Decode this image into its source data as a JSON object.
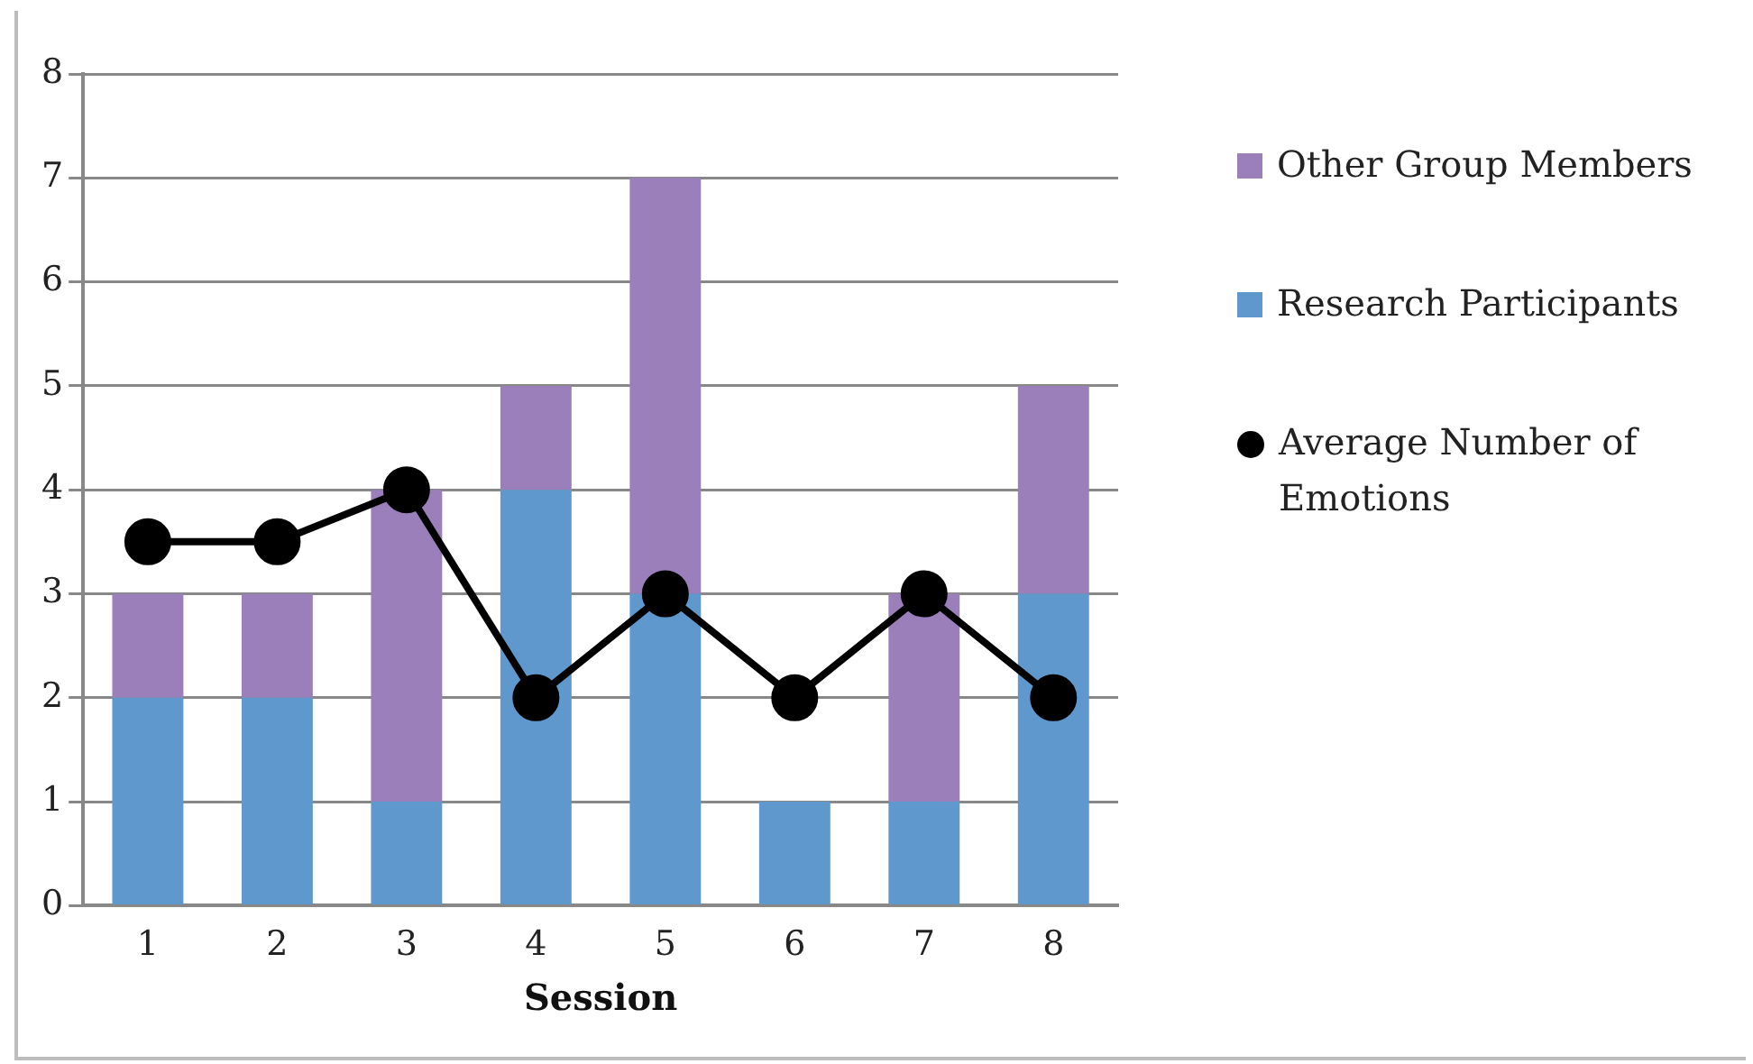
{
  "chart_data": {
    "type": "bar",
    "stacked": true,
    "xlabel": "Session",
    "categories": [
      "1",
      "2",
      "3",
      "4",
      "5",
      "6",
      "7",
      "8"
    ],
    "series": [
      {
        "name": "Research Participants",
        "color": "#5f98cc",
        "values": [
          2,
          2,
          1,
          4,
          3,
          1,
          1,
          3
        ]
      },
      {
        "name": "Other Group Members",
        "color": "#9a7fba",
        "values": [
          1,
          1,
          3,
          1,
          4,
          0,
          2,
          2
        ]
      },
      {
        "name": "Average Number of Emotions",
        "type": "line",
        "color": "#000000",
        "marker": "circle",
        "values": [
          3.5,
          3.5,
          4,
          2,
          3,
          2,
          3,
          2
        ]
      }
    ],
    "ylim": [
      0,
      8
    ],
    "yticks": [
      0,
      1,
      2,
      3,
      4,
      5,
      6,
      7,
      8
    ],
    "grid": "y",
    "legend": "right"
  }
}
